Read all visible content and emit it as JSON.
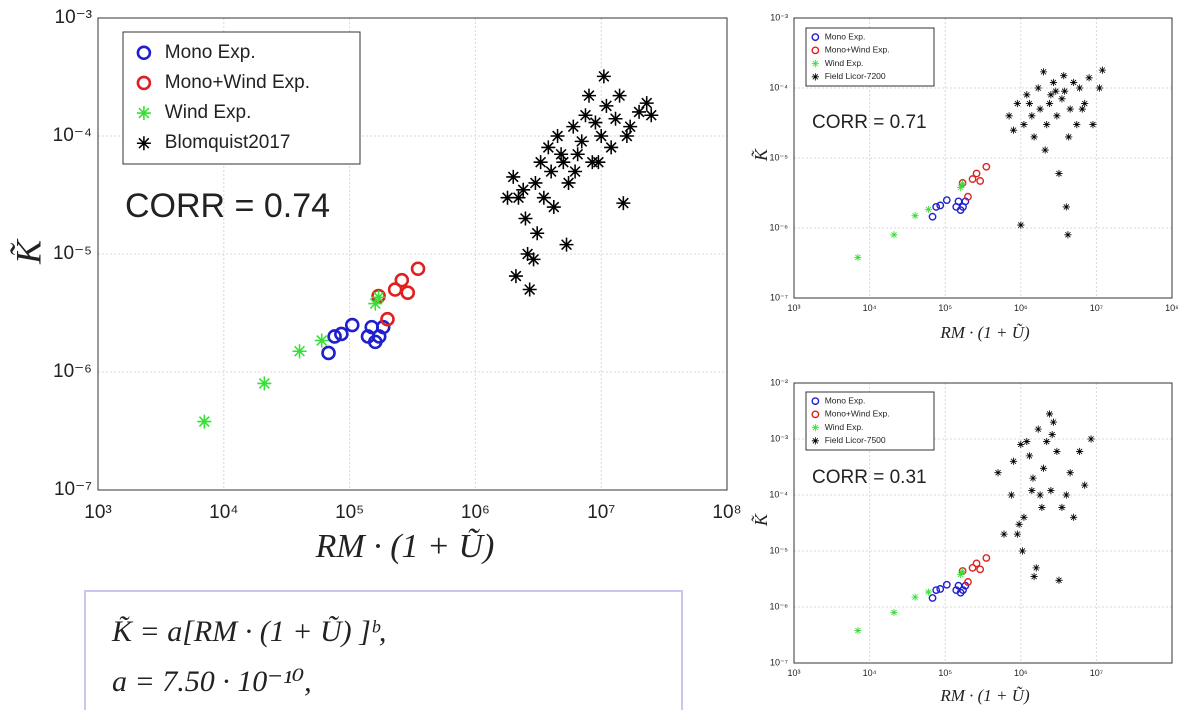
{
  "chart_data": [
    {
      "type": "scatter",
      "x_label": "RM · (1 + Ũ)",
      "y_label": "K̃",
      "annotation": "CORR = 0.74",
      "log_x": true,
      "log_y": true,
      "grid": true,
      "legend": "upper left",
      "xlim": [
        1000,
        100000000
      ],
      "ylim": [
        1e-07,
        0.001
      ],
      "xticks": [
        {
          "value": 1000,
          "label": "10³"
        },
        {
          "value": 10000,
          "label": "10⁴"
        },
        {
          "value": 100000,
          "label": "10⁵"
        },
        {
          "value": 1000000,
          "label": "10⁶"
        },
        {
          "value": 10000000,
          "label": "10⁷"
        },
        {
          "value": 100000000,
          "label": "10⁸"
        }
      ],
      "yticks": [
        {
          "value": 1e-07,
          "label": "10⁻⁷"
        },
        {
          "value": 1e-06,
          "label": "10⁻⁶"
        },
        {
          "value": 1e-05,
          "label": "10⁻⁵"
        },
        {
          "value": 0.0001,
          "label": "10⁻⁴"
        },
        {
          "value": 0.001,
          "label": "10⁻³"
        }
      ],
      "series": [
        {
          "name": "Mono Exp.",
          "color": "#1f1fd0",
          "marker": "o",
          "x": [
            68000,
            76000,
            86000,
            105000,
            140000,
            150000,
            160000,
            172000,
            185000
          ],
          "values": [
            1.45e-06,
            2e-06,
            2.1e-06,
            2.5e-06,
            2e-06,
            2.4e-06,
            1.8e-06,
            2e-06,
            2.4e-06
          ]
        },
        {
          "name": "Mono+Wind Exp.",
          "color": "#e02020",
          "marker": "o",
          "x": [
            170000,
            200000,
            230000,
            260000,
            290000,
            350000
          ],
          "values": [
            4.4e-06,
            2.8e-06,
            5e-06,
            6e-06,
            4.7e-06,
            7.5e-06
          ]
        },
        {
          "name": "Wind Exp.",
          "color": "#33e033",
          "marker": "*",
          "x": [
            7000,
            21000,
            40000,
            60000,
            160000,
            170000
          ],
          "values": [
            3.8e-07,
            8e-07,
            1.5e-06,
            1.85e-06,
            3.8e-06,
            4.3e-06
          ]
        },
        {
          "name": "Blomquist2017",
          "color": "#000000",
          "marker": "*",
          "x": [
            2000000,
            2200000,
            2500000,
            2700000,
            2900000,
            3000000,
            3300000,
            3500000,
            2100000,
            3800000,
            4000000,
            4200000,
            4500000,
            5000000,
            5300000,
            5500000,
            6000000,
            6500000,
            7000000,
            7500000,
            8000000,
            8500000,
            9000000,
            10000000,
            10500000,
            11000000,
            12000000,
            13000000,
            14000000,
            15000000,
            17000000,
            20000000,
            23000000,
            25000000,
            1800000,
            2400000,
            3100000,
            2600000,
            4800000,
            6200000,
            9500000,
            16000000
          ],
          "values": [
            4.5e-05,
            3e-05,
            2e-05,
            5e-06,
            9e-06,
            4e-05,
            6e-05,
            3e-05,
            6.5e-06,
            8e-05,
            5e-05,
            2.5e-05,
            0.0001,
            6e-05,
            1.2e-05,
            4e-05,
            0.00012,
            7e-05,
            9e-05,
            0.00015,
            0.00022,
            6e-05,
            0.00013,
            0.0001,
            0.00032,
            0.00018,
            8e-05,
            0.00014,
            0.00022,
            2.7e-05,
            0.00012,
            0.00016,
            0.00019,
            0.00015,
            3e-05,
            3.5e-05,
            1.5e-05,
            1e-05,
            7e-05,
            5e-05,
            6e-05,
            0.0001
          ]
        }
      ]
    },
    {
      "type": "scatter",
      "x_label": "RM · (1 + Ũ)",
      "y_label": "K̃",
      "annotation": "CORR = 0.71",
      "log_x": true,
      "log_y": true,
      "grid": true,
      "legend": "upper left",
      "xlim": [
        1000,
        100000000
      ],
      "ylim": [
        1e-07,
        0.001
      ],
      "xticks": [
        {
          "value": 1000,
          "label": "10³"
        },
        {
          "value": 10000,
          "label": "10⁴"
        },
        {
          "value": 100000,
          "label": "10⁵"
        },
        {
          "value": 1000000,
          "label": "10⁶"
        },
        {
          "value": 10000000,
          "label": "10⁷"
        },
        {
          "value": 100000000,
          "label": "10⁸"
        }
      ],
      "yticks": [
        {
          "value": 1e-07,
          "label": "10⁻⁷"
        },
        {
          "value": 1e-06,
          "label": "10⁻⁶"
        },
        {
          "value": 1e-05,
          "label": "10⁻⁵"
        },
        {
          "value": 0.0001,
          "label": "10⁻⁴"
        },
        {
          "value": 0.001,
          "label": "10⁻³"
        }
      ],
      "series": [
        {
          "name": "Mono Exp.",
          "color": "#1f1fd0",
          "marker": "o",
          "x": [
            68000,
            76000,
            86000,
            105000,
            140000,
            150000,
            160000,
            172000,
            185000
          ],
          "values": [
            1.45e-06,
            2e-06,
            2.1e-06,
            2.5e-06,
            2e-06,
            2.4e-06,
            1.8e-06,
            2e-06,
            2.4e-06
          ]
        },
        {
          "name": "Mono+Wind Exp.",
          "color": "#e02020",
          "marker": "o",
          "x": [
            170000,
            200000,
            230000,
            260000,
            290000,
            350000
          ],
          "values": [
            4.4e-06,
            2.8e-06,
            5e-06,
            6e-06,
            4.7e-06,
            7.5e-06
          ]
        },
        {
          "name": "Wind Exp.",
          "color": "#33e033",
          "marker": "*",
          "x": [
            7000,
            21000,
            40000,
            60000,
            160000,
            170000
          ],
          "values": [
            3.8e-07,
            8e-07,
            1.5e-06,
            1.85e-06,
            3.8e-06,
            4.3e-06
          ]
        },
        {
          "name": "Field Licor-7200",
          "color": "#000000",
          "marker": "*",
          "x": [
            700000,
            800000,
            900000,
            1000000,
            1100000,
            1200000,
            1400000,
            1500000,
            1700000,
            1800000,
            2000000,
            2200000,
            2400000,
            2500000,
            2700000,
            3000000,
            3200000,
            3500000,
            3800000,
            4000000,
            4200000,
            4500000,
            5000000,
            5500000,
            6000000,
            7000000,
            8000000,
            9000000,
            11000000,
            12000000,
            1300000,
            2100000,
            2900000,
            3700000,
            4300000,
            6500000
          ],
          "values": [
            4e-05,
            2.5e-05,
            6e-05,
            1.1e-06,
            3e-05,
            8e-05,
            4e-05,
            2e-05,
            0.0001,
            5e-05,
            0.00017,
            3e-05,
            6e-05,
            8e-05,
            0.00012,
            4e-05,
            6e-06,
            7e-05,
            9e-05,
            2e-06,
            8e-07,
            5e-05,
            0.00012,
            3e-05,
            0.0001,
            6e-05,
            0.00014,
            3e-05,
            0.0001,
            0.00018,
            6e-05,
            1.3e-05,
            9e-05,
            0.00015,
            2e-05,
            5e-05
          ]
        }
      ]
    },
    {
      "type": "scatter",
      "x_label": "RM · (1 + Ũ)",
      "y_label": "K̃",
      "annotation": "CORR = 0.31",
      "log_x": true,
      "log_y": true,
      "grid": true,
      "legend": "upper left",
      "xlim": [
        1000,
        100000000
      ],
      "ylim": [
        1e-07,
        0.01
      ],
      "xticks": [
        {
          "value": 1000,
          "label": "10³"
        },
        {
          "value": 10000,
          "label": "10⁴"
        },
        {
          "value": 100000,
          "label": "10⁵"
        },
        {
          "value": 1000000,
          "label": "10⁶"
        },
        {
          "value": 10000000,
          "label": "10⁷"
        }
      ],
      "yticks": [
        {
          "value": 1e-07,
          "label": "10⁻⁷"
        },
        {
          "value": 1e-06,
          "label": "10⁻⁶"
        },
        {
          "value": 1e-05,
          "label": "10⁻⁵"
        },
        {
          "value": 0.0001,
          "label": "10⁻⁴"
        },
        {
          "value": 0.001,
          "label": "10⁻³"
        },
        {
          "value": 0.01,
          "label": "10⁻²"
        }
      ],
      "series": [
        {
          "name": "Mono Exp.",
          "color": "#1f1fd0",
          "marker": "o",
          "x": [
            68000,
            76000,
            86000,
            105000,
            140000,
            150000,
            160000,
            172000,
            185000
          ],
          "values": [
            1.45e-06,
            2e-06,
            2.1e-06,
            2.5e-06,
            2e-06,
            2.4e-06,
            1.8e-06,
            2e-06,
            2.4e-06
          ]
        },
        {
          "name": "Mono+Wind Exp.",
          "color": "#e02020",
          "marker": "o",
          "x": [
            170000,
            200000,
            230000,
            260000,
            290000,
            350000
          ],
          "values": [
            4.4e-06,
            2.8e-06,
            5e-06,
            6e-06,
            4.7e-06,
            7.5e-06
          ]
        },
        {
          "name": "Wind Exp.",
          "color": "#33e033",
          "marker": "*",
          "x": [
            7000,
            21000,
            40000,
            60000,
            160000,
            170000
          ],
          "values": [
            3.8e-07,
            8e-07,
            1.5e-06,
            1.85e-06,
            3.8e-06,
            4.3e-06
          ]
        },
        {
          "name": "Field Licor-7500",
          "color": "#000000",
          "marker": "*",
          "x": [
            500000,
            600000,
            750000,
            800000,
            900000,
            950000,
            1000000,
            1050000,
            1100000,
            1200000,
            1300000,
            1400000,
            1500000,
            1600000,
            1700000,
            1800000,
            2000000,
            2200000,
            2400000,
            2500000,
            2700000,
            3000000,
            3200000,
            3500000,
            4000000,
            4500000,
            5000000,
            6000000,
            7000000,
            8500000,
            1450000,
            1900000,
            2600000
          ],
          "values": [
            0.00025,
            2e-05,
            0.0001,
            0.0004,
            2e-05,
            3e-05,
            0.0008,
            1e-05,
            4e-05,
            0.0009,
            0.0005,
            0.00012,
            3.5e-06,
            5e-06,
            0.0015,
            0.0001,
            0.0003,
            0.0009,
            0.0028,
            0.00012,
            0.002,
            0.0006,
            3e-06,
            6e-05,
            0.0001,
            0.00025,
            4e-05,
            0.0006,
            0.00015,
            0.001,
            0.0002,
            6e-05,
            0.0012
          ]
        }
      ]
    }
  ],
  "formula": {
    "lines": [
      "K̃ = a[RM · (1 + Ũ) ]ᵇ,",
      "a = 7.50 · 10⁻¹⁰,"
    ]
  }
}
